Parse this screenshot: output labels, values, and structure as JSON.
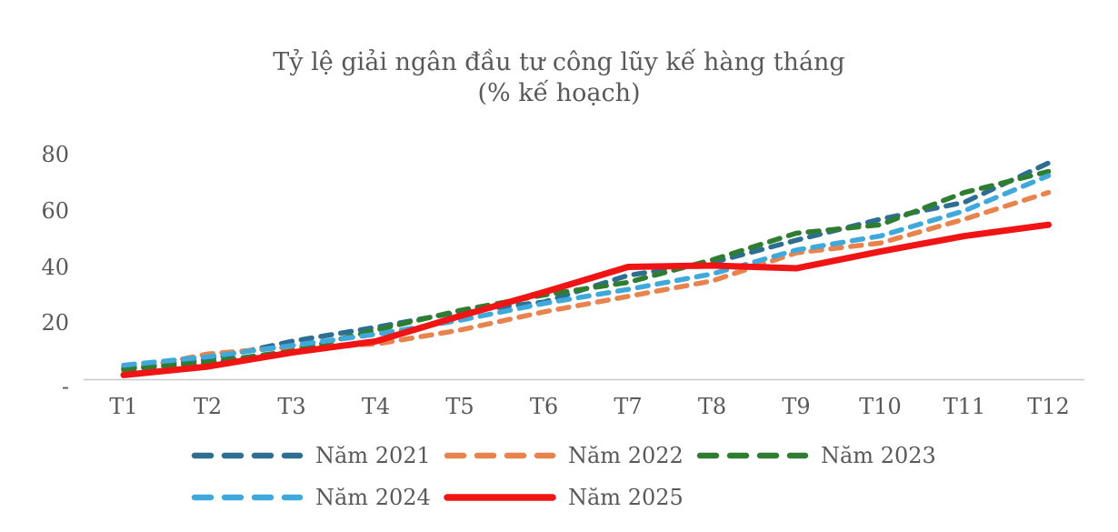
{
  "chart": {
    "title_line1": "Tỷ lệ giải ngân đầu tư công lũy kế hàng tháng",
    "title_line2": "(% kế hoạch)"
  },
  "colors": {
    "text": "#595959",
    "axis_line": "#C8C8C8"
  },
  "chart_data": {
    "type": "line",
    "title": "Tỷ lệ giải ngân đầu tư công lũy kế hàng tháng (% kế hoạch)",
    "xlabel": "",
    "ylabel": "",
    "ylim": [
      0,
      85
    ],
    "grid": false,
    "legend_position": "bottom",
    "categories": [
      "T1",
      "T2",
      "T3",
      "T4",
      "T5",
      "T6",
      "T7",
      "T8",
      "T9",
      "T10",
      "T11",
      "T12"
    ],
    "y_ticks": [
      {
        "label": "80",
        "value": 80
      },
      {
        "label": "60",
        "value": 60
      },
      {
        "label": "40",
        "value": 40
      },
      {
        "label": "20",
        "value": 20
      },
      {
        "label": "-",
        "value": 0
      }
    ],
    "series": [
      {
        "name": "Năm 2021",
        "color": "#2E6E91",
        "style": "dashed",
        "values": [
          4,
          7,
          13.5,
          18.5,
          24,
          27.5,
          37,
          41.5,
          49.5,
          57,
          63,
          77
        ]
      },
      {
        "name": "Năm 2022",
        "color": "#E8834E",
        "style": "dashed",
        "values": [
          3,
          9,
          11.5,
          12.5,
          17.5,
          24,
          29.5,
          35,
          45,
          48.5,
          57,
          66.5
        ]
      },
      {
        "name": "Năm 2023",
        "color": "#2F7D31",
        "style": "dashed",
        "values": [
          3.5,
          6,
          10,
          17.5,
          24.5,
          30,
          34.5,
          42.5,
          52,
          55,
          66.5,
          74
        ]
      },
      {
        "name": "Năm 2024",
        "color": "#3FA9DC",
        "style": "dashed",
        "values": [
          5,
          8,
          12,
          16,
          21,
          27,
          32,
          37.5,
          46,
          51,
          60,
          72.5
        ]
      },
      {
        "name": "Năm 2025",
        "color": "#F01414",
        "style": "solid",
        "values": [
          1.5,
          4.5,
          9.5,
          13.5,
          22.5,
          31,
          40,
          40.5,
          39.5,
          45.5,
          51,
          55
        ]
      }
    ]
  }
}
